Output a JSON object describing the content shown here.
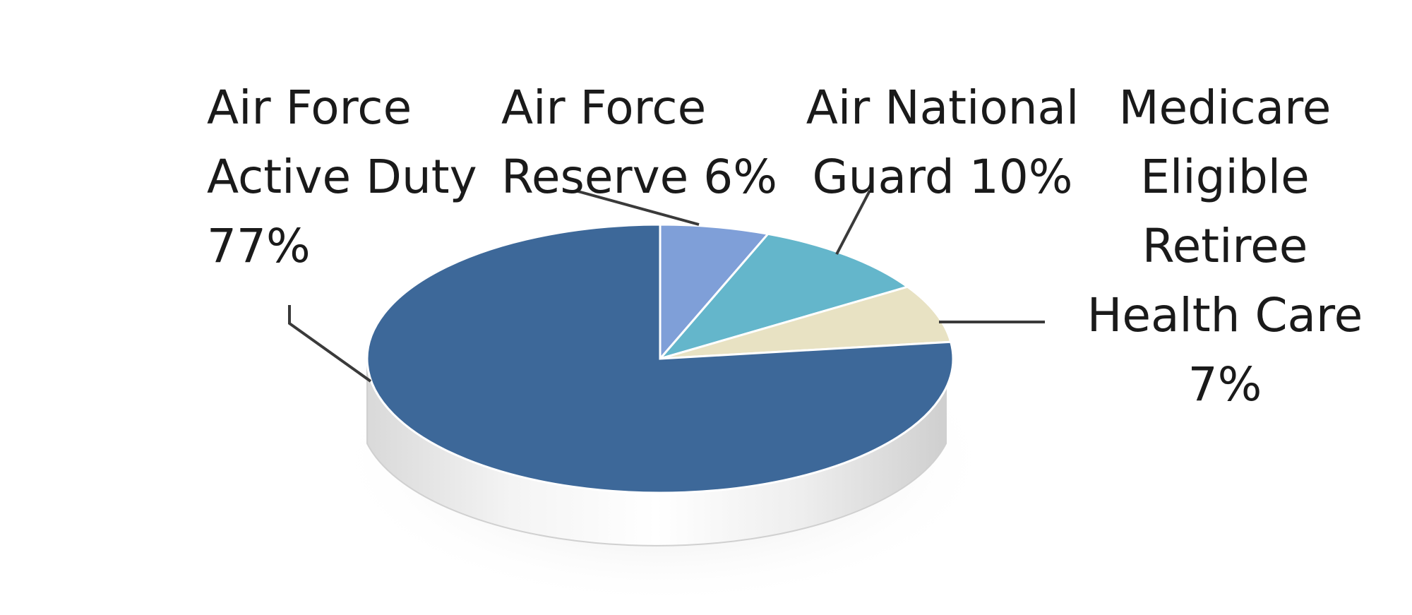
{
  "chart_data": {
    "type": "pie",
    "style": "3d",
    "title": "",
    "slices": [
      {
        "name": "Air Force Active Duty",
        "value": 77,
        "label_lines": [
          "Air Force",
          "Active Duty",
          "77%"
        ],
        "color": "#3d6899"
      },
      {
        "name": "Air Force Reserve",
        "value": 6,
        "label_lines": [
          "Air Force",
          "Reserve 6%"
        ],
        "color": "#7f9fd8"
      },
      {
        "name": "Air National Guard",
        "value": 10,
        "label_lines": [
          "Air National",
          "Guard 10%"
        ],
        "color": "#64b6cb"
      },
      {
        "name": "Medicare Eligible Retiree Health Care",
        "value": 7,
        "label_lines": [
          "Medicare",
          "Eligible",
          "Retiree",
          "Health Care",
          "7%"
        ],
        "color": "#e8e2c3"
      }
    ],
    "legend": "none",
    "labels": "outside-with-leader-lines"
  }
}
